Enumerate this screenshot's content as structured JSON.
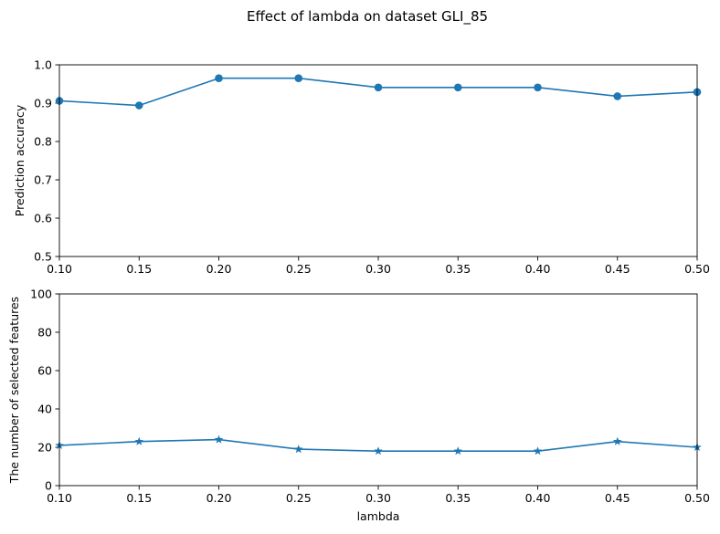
{
  "figure": {
    "suptitle": "Effect of lambda on dataset GLI_85"
  },
  "chart_data": [
    {
      "type": "line",
      "title": "",
      "xlabel": "",
      "ylabel": "Prediction accuracy",
      "xlim": [
        0.1,
        0.5
      ],
      "ylim": [
        0.5,
        1.0
      ],
      "x_ticks": [
        "0.10",
        "0.15",
        "0.20",
        "0.25",
        "0.30",
        "0.35",
        "0.40",
        "0.45",
        "0.50"
      ],
      "y_ticks": [
        "0.5",
        "0.6",
        "0.7",
        "0.8",
        "0.9",
        "1.0"
      ],
      "grid": false,
      "marker": "circle",
      "color": "#1f77b4",
      "x": [
        0.1,
        0.15,
        0.2,
        0.25,
        0.3,
        0.35,
        0.4,
        0.45,
        0.5
      ],
      "y": [
        0.906,
        0.894,
        0.965,
        0.965,
        0.941,
        0.941,
        0.941,
        0.918,
        0.929
      ]
    },
    {
      "type": "line",
      "title": "",
      "xlabel": "lambda",
      "ylabel": "The number of selected features",
      "xlim": [
        0.1,
        0.5
      ],
      "ylim": [
        0,
        100
      ],
      "x_ticks": [
        "0.10",
        "0.15",
        "0.20",
        "0.25",
        "0.30",
        "0.35",
        "0.40",
        "0.45",
        "0.50"
      ],
      "y_ticks": [
        "0",
        "20",
        "40",
        "60",
        "80",
        "100"
      ],
      "grid": false,
      "marker": "star",
      "color": "#1f77b4",
      "x": [
        0.1,
        0.15,
        0.2,
        0.25,
        0.3,
        0.35,
        0.4,
        0.45,
        0.5
      ],
      "y": [
        21,
        23,
        24,
        19,
        18,
        18,
        18,
        23,
        20
      ]
    }
  ]
}
